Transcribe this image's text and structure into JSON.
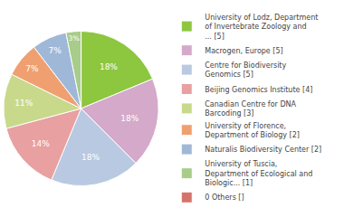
{
  "chart_data": {
    "type": "pie",
    "categories": [
      "University of Lodz, Department\nof Invertebrate Zoology and\n... [5]",
      "Macrogen, Europe [5]",
      "Centre for Biodiversity\nGenomics [5]",
      "Beijing Genomics Institute [4]",
      "Canadian Centre for DNA\nBarcoding [3]",
      "University of Florence,\nDepartment of Biology [2]",
      "Naturalis Biodiversity Center [2]",
      "University of Tuscia,\nDepartment of Ecological and\nBiologic... [1]",
      "0 Others []"
    ],
    "values": [
      18,
      18,
      18,
      14,
      11,
      7,
      7,
      3,
      0
    ],
    "value_labels": [
      "18%",
      "18%",
      "18%",
      "14%",
      "11%",
      "7%",
      "7%",
      "3%",
      null
    ],
    "colors": [
      "#8DC63F",
      "#D4A9C9",
      "#B8C9E1",
      "#E8A0A0",
      "#C8D98C",
      "#F0A070",
      "#A0B8D8",
      "#A8CC8A",
      "#D4736A"
    ],
    "data_labels": true,
    "legend": "right"
  }
}
